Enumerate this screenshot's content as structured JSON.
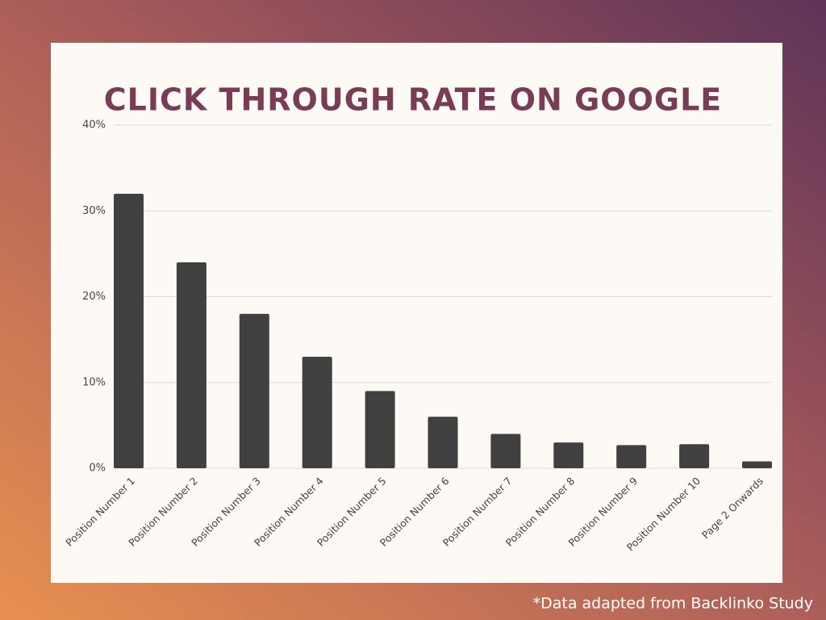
{
  "chart_data": {
    "type": "bar",
    "title": "CLICK THROUGH RATE ON GOOGLE",
    "footnote": "*Data adapted from Backlinko Study",
    "categories": [
      "Position Number 1",
      "Position Number 2",
      "Position Number 3",
      "Position Number 4",
      "Position Number 5",
      "Position Number 6",
      "Position Number 7",
      "Position Number 8",
      "Position Number 9",
      "Position Number 10",
      "Page 2 Onwards"
    ],
    "values": [
      32,
      24,
      18,
      13,
      9,
      6,
      4,
      3,
      2.7,
      2.8,
      0.8
    ],
    "color": "#404040",
    "ylim": [
      0,
      40
    ],
    "yticks": [
      {
        "value": 0,
        "label": "0%"
      },
      {
        "value": 10,
        "label": "10%"
      },
      {
        "value": 20,
        "label": "20%"
      },
      {
        "value": 30,
        "label": "30%"
      },
      {
        "value": 40,
        "label": "40%"
      }
    ],
    "grid": true
  }
}
